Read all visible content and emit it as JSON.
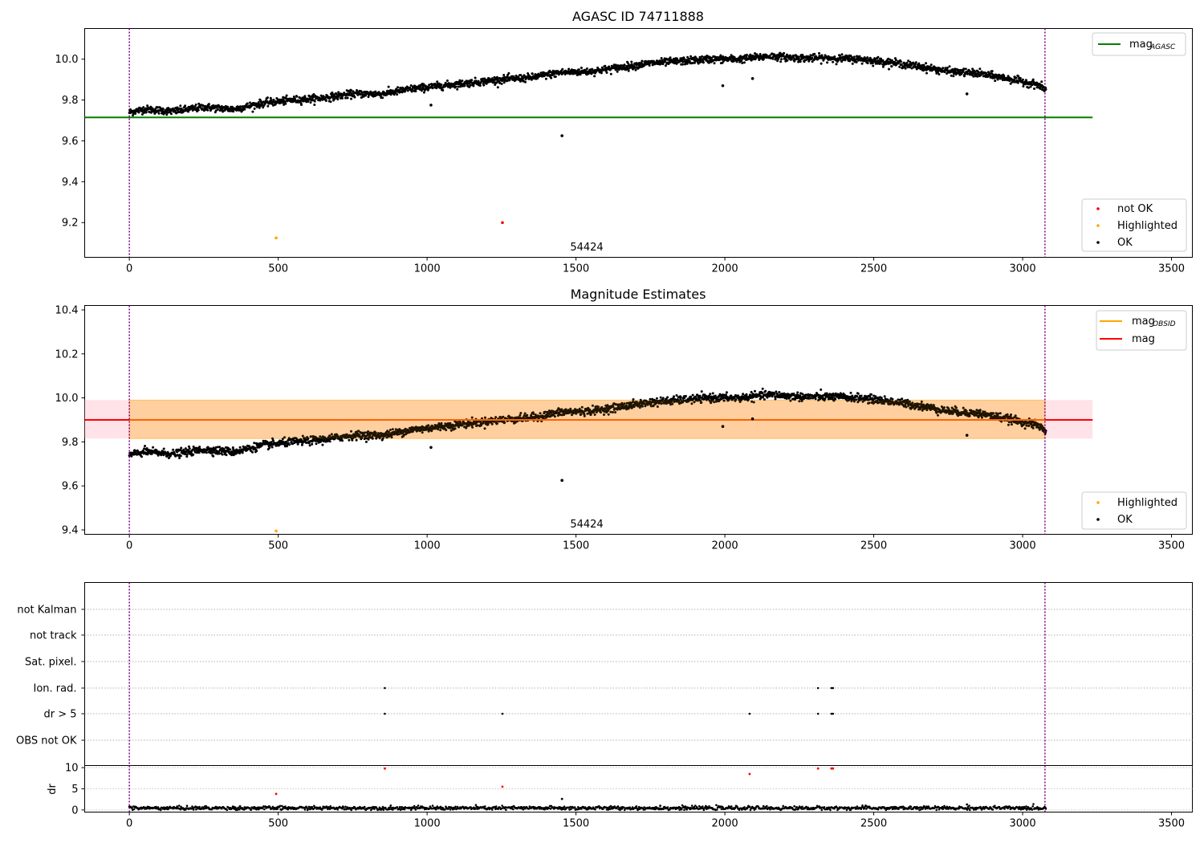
{
  "chart_data": [
    {
      "type": "scatter",
      "title": "AGASC ID 74711888",
      "xlim": [
        -150,
        3570
      ],
      "ylim": [
        9.03,
        10.15
      ],
      "xticks": [
        0,
        500,
        1000,
        1500,
        2000,
        2500,
        3000,
        3500
      ],
      "yticks": [
        9.2,
        9.4,
        9.6,
        9.8,
        10.0
      ],
      "vlines": {
        "color": "#800080",
        "values": [
          0,
          3075
        ]
      },
      "hline": {
        "label": "mag",
        "label_sub": "AGASC",
        "value": 9.715,
        "x_range": [
          -150,
          3235
        ],
        "color": "#008000"
      },
      "annotation": {
        "text": "54424",
        "x": 1540,
        "y": 9.06
      },
      "trend": {
        "x": [
          0,
          50,
          150,
          250,
          350,
          450,
          550,
          650,
          750,
          850,
          950,
          1050,
          1150,
          1250,
          1350,
          1450,
          1550,
          1650,
          1750,
          1850,
          1950,
          2050,
          2150,
          2250,
          2350,
          2450,
          2550,
          2650,
          2750,
          2850,
          2950,
          3050,
          3080
        ],
        "y": [
          9.74,
          9.755,
          9.745,
          9.765,
          9.755,
          9.785,
          9.8,
          9.81,
          9.83,
          9.83,
          9.855,
          9.87,
          9.885,
          9.9,
          9.91,
          9.935,
          9.94,
          9.96,
          9.98,
          9.99,
          10.0,
          10.0,
          10.015,
          10.005,
          10.005,
          10.0,
          9.985,
          9.965,
          9.94,
          9.93,
          9.905,
          9.875,
          9.85
        ]
      },
      "series": [
        {
          "name": "not OK",
          "color": "#ff0000",
          "x": [
            1253
          ],
          "y": [
            9.2
          ]
        },
        {
          "name": "Highlighted",
          "color": "#ffa500",
          "x": [
            493
          ],
          "y": [
            9.125
          ]
        },
        {
          "name": "OK",
          "color": "#000000",
          "x": [
            1453,
            1993,
            2093,
            2813,
            1013
          ],
          "y": [
            9.625,
            9.87,
            9.905,
            9.83,
            9.775
          ]
        }
      ],
      "legend_lines": [
        {
          "label": "mag",
          "label_sub": "AGASC",
          "color": "#008000"
        }
      ],
      "legend_markers": [
        {
          "label": "not OK",
          "color": "#ff0000"
        },
        {
          "label": "Highlighted",
          "color": "#ffa500"
        },
        {
          "label": "OK",
          "color": "#000000"
        }
      ]
    },
    {
      "type": "scatter",
      "title": "Magnitude Estimates",
      "xlim": [
        -150,
        3570
      ],
      "ylim": [
        9.38,
        10.42
      ],
      "xticks": [
        0,
        500,
        1000,
        1500,
        2000,
        2500,
        3000,
        3500
      ],
      "yticks": [
        9.4,
        9.6,
        9.8,
        10.0,
        10.2,
        10.4
      ],
      "vlines": {
        "color": "#800080",
        "values": [
          0,
          3075
        ]
      },
      "hline": {
        "label": "mag",
        "value": 9.9,
        "x_range": [
          -150,
          3235
        ],
        "color": "#ff0000"
      },
      "bands": [
        {
          "x_range": [
            -150,
            3235
          ],
          "y_range": [
            9.815,
            9.99
          ],
          "color": "#ffc0cb"
        },
        {
          "x_range": [
            0,
            3075
          ],
          "y_range": [
            9.815,
            9.99
          ],
          "color": "#ffa500"
        }
      ],
      "annotation": {
        "text": "54424",
        "x": 1540,
        "y": 9.41
      },
      "series": [
        {
          "name": "Highlighted",
          "color": "#ffa500",
          "x": [
            493
          ],
          "y": [
            9.395
          ]
        },
        {
          "name": "OK",
          "color": "#000000",
          "x": [
            1453,
            1993,
            2093,
            2813,
            1013
          ],
          "y": [
            9.625,
            9.87,
            9.905,
            9.83,
            9.775
          ]
        }
      ],
      "legend_lines": [
        {
          "label": "mag",
          "label_sub": "OBSID",
          "color": "#ffa500"
        },
        {
          "label": "mag",
          "color": "#ff0000"
        }
      ],
      "legend_markers": [
        {
          "label": "Highlighted",
          "color": "#ffa500"
        },
        {
          "label": "OK",
          "color": "#000000"
        }
      ]
    },
    {
      "type": "scatter",
      "title": "",
      "xlim": [
        -150,
        3570
      ],
      "categories": [
        "not Kalman",
        "not track",
        "Sat. pixel.",
        "Ion. rad.",
        "dr > 5",
        "OBS not OK"
      ],
      "flags": [
        {
          "category": "Ion. rad.",
          "x": [
            858,
            2313,
            2358,
            2363
          ]
        },
        {
          "category": "dr > 5",
          "x": [
            858,
            1253,
            2083,
            2313,
            2358,
            2363
          ]
        }
      ]
    },
    {
      "type": "scatter",
      "title": "",
      "ylabel": "dr",
      "xlim": [
        -150,
        3570
      ],
      "ylim": [
        -0.5,
        10.5
      ],
      "xticks": [
        0,
        500,
        1000,
        1500,
        2000,
        2500,
        3000,
        3500
      ],
      "yticks": [
        0,
        5,
        10
      ],
      "baseline_mean": 0.45,
      "series": [
        {
          "name": "outliers",
          "color": "#ff0000",
          "x": [
            858,
            2313,
            2358,
            2363,
            2083,
            1253,
            493
          ],
          "y": [
            9.8,
            9.8,
            9.8,
            9.8,
            8.5,
            5.5,
            3.8
          ]
        },
        {
          "name": "OK",
          "color": "#000000",
          "x": [
            1453,
            2813,
            1783
          ],
          "y": [
            2.6,
            1.3,
            1.0
          ]
        }
      ]
    }
  ]
}
